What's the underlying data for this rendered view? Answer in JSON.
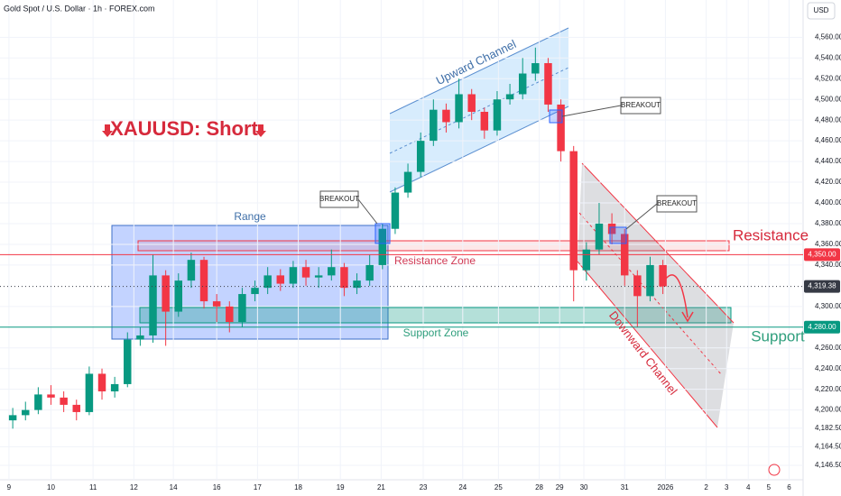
{
  "chart_data": {
    "type": "candlestick",
    "title": "Gold Spot / U.S. Dollar · 1h · FOREX.com",
    "currency": "USD",
    "up_color": "#089981",
    "down_color": "#f23645",
    "xlim": [
      -1,
      62
    ],
    "ylim": [
      4130,
      4596
    ],
    "xticks": [
      {
        "value": -0.3,
        "label": "9"
      },
      {
        "value": 3.0,
        "label": "10"
      },
      {
        "value": 6.3,
        "label": "11"
      },
      {
        "value": 9.5,
        "label": "12"
      },
      {
        "value": 12.6,
        "label": "14"
      },
      {
        "value": 16,
        "label": "16"
      },
      {
        "value": 19.2,
        "label": "17"
      },
      {
        "value": 22.4,
        "label": "18"
      },
      {
        "value": 25.7,
        "label": "19"
      },
      {
        "value": 28.9,
        "label": "21"
      },
      {
        "value": 32.2,
        "label": "23"
      },
      {
        "value": 35.3,
        "label": "24"
      },
      {
        "value": 38.1,
        "label": "25"
      },
      {
        "value": 41.3,
        "label": "28"
      },
      {
        "value": 42.9,
        "label": "29"
      },
      {
        "value": 44.8,
        "label": "30"
      },
      {
        "value": 48,
        "label": "31"
      },
      {
        "value": 51.2,
        "label": "2026"
      },
      {
        "value": 54.4,
        "label": "2"
      },
      {
        "value": 56,
        "label": "3"
      },
      {
        "value": 57.7,
        "label": "4"
      },
      {
        "value": 59.3,
        "label": "5"
      },
      {
        "value": 60.9,
        "label": "6"
      }
    ],
    "yticks": [
      {
        "value": 4146.5,
        "label": "4,146.50"
      },
      {
        "value": 4164.5,
        "label": "4,164.50"
      },
      {
        "value": 4182.5,
        "label": "4,182.50"
      },
      {
        "value": 4200,
        "label": "4,200.00"
      },
      {
        "value": 4220,
        "label": "4,220.00"
      },
      {
        "value": 4240,
        "label": "4,240.00"
      },
      {
        "value": 4260,
        "label": "4,260.00"
      },
      {
        "value": 4300,
        "label": "4,300.00"
      },
      {
        "value": 4340,
        "label": "4,340.00"
      },
      {
        "value": 4360,
        "label": "4,360.00"
      },
      {
        "value": 4380,
        "label": "4,380.00"
      },
      {
        "value": 4400,
        "label": "4,400.00"
      },
      {
        "value": 4420,
        "label": "4,420.00"
      },
      {
        "value": 4440,
        "label": "4,440.00"
      },
      {
        "value": 4460,
        "label": "4,460.00"
      },
      {
        "value": 4480,
        "label": "4,480.00"
      },
      {
        "value": 4500,
        "label": "4,500.00"
      },
      {
        "value": 4520,
        "label": "4,520.00"
      },
      {
        "value": 4540,
        "label": "4,540.00"
      },
      {
        "value": 4560,
        "label": "4,560.00"
      }
    ],
    "price_labels": [
      {
        "value": 4350,
        "label": "4,350.00",
        "color": "#f23645"
      },
      {
        "value": 4319.38,
        "label": "4,319.38",
        "color": "#363a45"
      },
      {
        "value": 4280,
        "label": "4,280.00",
        "color": "#089981"
      }
    ],
    "open": [
      4190,
      4195,
      4200,
      4215,
      4212,
      4205,
      4198,
      4235,
      4218,
      4225,
      4268,
      4272,
      4330,
      4295,
      4325,
      4345,
      4305,
      4300,
      4285,
      4312,
      4318,
      4330,
      4322,
      4338,
      4328,
      4330,
      4338,
      4318,
      4325,
      4340,
      4375,
      4410,
      4430,
      4460,
      4490,
      4478,
      4505,
      4488,
      4470,
      4500,
      4505,
      4525,
      4535,
      4495,
      4450,
      4335,
      4355,
      4380,
      4370,
      4330,
      4310,
      4340
    ],
    "high": [
      4202,
      4208,
      4222,
      4224,
      4218,
      4210,
      4242,
      4240,
      4232,
      4275,
      4280,
      4350,
      4335,
      4332,
      4352,
      4348,
      4312,
      4305,
      4318,
      4325,
      4338,
      4336,
      4344,
      4345,
      4338,
      4355,
      4342,
      4332,
      4350,
      4380,
      4415,
      4438,
      4468,
      4500,
      4496,
      4520,
      4510,
      4492,
      4508,
      4515,
      4540,
      4550,
      4540,
      4500,
      4455,
      4362,
      4400,
      4390,
      4375,
      4335,
      4348,
      4345
    ],
    "low": [
      4182,
      4190,
      4196,
      4205,
      4198,
      4190,
      4195,
      4210,
      4212,
      4222,
      4262,
      4265,
      4262,
      4290,
      4318,
      4298,
      4285,
      4275,
      4280,
      4305,
      4312,
      4315,
      4318,
      4320,
      4318,
      4325,
      4310,
      4312,
      4320,
      4336,
      4370,
      4405,
      4425,
      4455,
      4468,
      4472,
      4480,
      4462,
      4465,
      4495,
      4500,
      4518,
      4488,
      4440,
      4305,
      4325,
      4350,
      4360,
      4320,
      4280,
      4305,
      4312
    ],
    "close": [
      4195,
      4200,
      4215,
      4212,
      4205,
      4198,
      4235,
      4218,
      4225,
      4268,
      4272,
      4330,
      4295,
      4325,
      4345,
      4305,
      4300,
      4285,
      4312,
      4318,
      4330,
      4322,
      4338,
      4328,
      4330,
      4338,
      4318,
      4325,
      4340,
      4375,
      4410,
      4430,
      4460,
      4490,
      4478,
      4505,
      4488,
      4470,
      4500,
      4505,
      4525,
      4535,
      4495,
      4450,
      4335,
      4355,
      4380,
      4370,
      4330,
      4310,
      4340,
      4319.38
    ],
    "annotations": {
      "headline": "XAUUSD: Short",
      "range": "Range",
      "upward_channel": "Upward Channel",
      "downward_channel": "Downward Channel",
      "resistance_zone": "Resistance Zone",
      "support_zone": "Support Zone",
      "resistance": "Resistance",
      "support": "Support",
      "breakouts": [
        "BREAKOUT",
        "BREAKOUT",
        "BREAKOUT"
      ]
    }
  }
}
